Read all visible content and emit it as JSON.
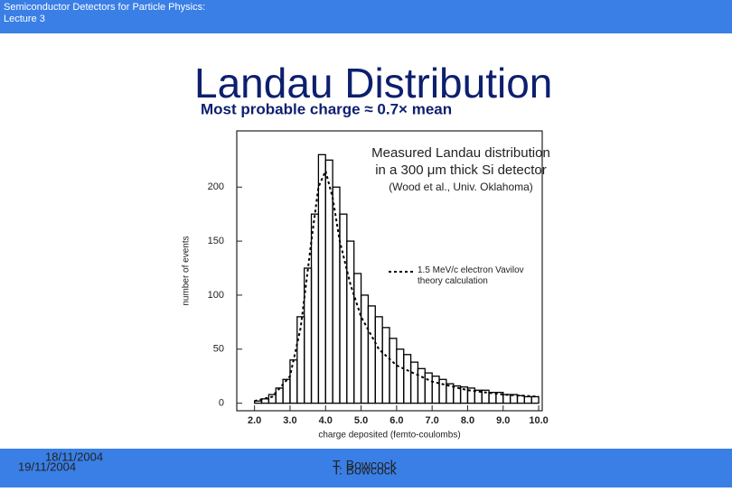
{
  "header": "Semiconductor Detectors for Particle Physics: Lecture 3",
  "title": "Landau Distribution",
  "subtitle": "Most probable charge ≈ 0.7× mean",
  "footer": {
    "dates": [
      "18/11/2004",
      "19/11/2004"
    ],
    "authors": [
      "T. Bowcock",
      "T. Bowcock"
    ]
  },
  "chart_data": {
    "type": "histogram",
    "annotations": [
      "Measured Landau distribution",
      "in a 300 μm thick Si detector",
      "(Wood et al., Univ. Oklahoma)"
    ],
    "xlabel": "charge deposited (femto-coulombs)",
    "ylabel": "number of events",
    "bins": [
      2.0,
      2.2,
      2.4,
      2.6,
      2.8,
      3.0,
      3.2,
      3.4,
      3.6,
      3.8,
      4.0,
      4.2,
      4.4,
      4.6,
      4.8,
      5.0,
      5.2,
      5.4,
      5.6,
      5.8,
      6.0,
      6.2,
      6.4,
      6.6,
      6.8,
      7.0,
      7.2,
      7.4,
      7.6,
      7.8,
      8.0,
      8.2,
      8.4,
      8.6,
      8.8,
      9.0,
      9.2,
      9.4,
      9.6,
      9.8,
      10.0
    ],
    "values": [
      2,
      4,
      8,
      14,
      22,
      40,
      80,
      125,
      175,
      230,
      225,
      200,
      175,
      150,
      120,
      100,
      90,
      80,
      70,
      60,
      50,
      45,
      38,
      32,
      28,
      25,
      22,
      18,
      16,
      15,
      14,
      12,
      12,
      10,
      10,
      8,
      8,
      7,
      6,
      6
    ],
    "color": "#000000",
    "overlay": {
      "name": "1.5 MeV/c electron Vavilov theory calculation",
      "color": "#000000",
      "dashed": true,
      "x": [
        2.0,
        2.5,
        3.0,
        3.3,
        3.6,
        3.8,
        4.0,
        4.2,
        4.4,
        4.7,
        5.0,
        5.5,
        6.0,
        7.0,
        8.0,
        9.0,
        10.0
      ],
      "values": [
        2,
        6,
        25,
        70,
        150,
        200,
        215,
        190,
        150,
        110,
        80,
        50,
        35,
        20,
        12,
        8,
        6
      ]
    },
    "xlim": [
      1.5,
      10.1
    ],
    "ylim": [
      -7,
      252
    ],
    "xticks": [
      {
        "value": 2,
        "label": "2.0"
      },
      {
        "value": 3,
        "label": "3.0"
      },
      {
        "value": 4,
        "label": "4.0"
      },
      {
        "value": 5,
        "label": "5.0"
      },
      {
        "value": 6,
        "label": "6.0"
      },
      {
        "value": 7,
        "label": "7.0"
      },
      {
        "value": 8,
        "label": "8.0"
      },
      {
        "value": 9,
        "label": "9.0"
      },
      {
        "value": 10,
        "label": "10.0"
      }
    ],
    "yticks": [
      0,
      50,
      100,
      150,
      200
    ]
  }
}
